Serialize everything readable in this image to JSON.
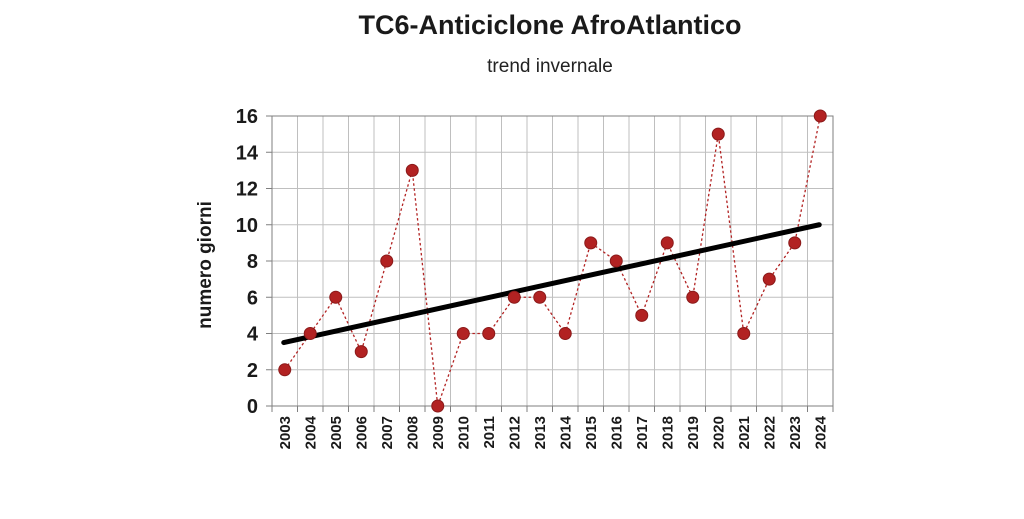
{
  "chart_data": {
    "type": "line",
    "title": "TC6-Anticiclone AfroAtlantico",
    "subtitle": "trend invernale",
    "ylabel": "numero giorni",
    "xlabel": "",
    "ylim": [
      0,
      16
    ],
    "yticks": [
      0,
      2,
      4,
      6,
      8,
      10,
      12,
      14,
      16
    ],
    "grid": true,
    "categories": [
      "2003",
      "2004",
      "2005",
      "2006",
      "2007",
      "2008",
      "2009",
      "2010",
      "2011",
      "2012",
      "2013",
      "2014",
      "2015",
      "2016",
      "2017",
      "2018",
      "2019",
      "2020",
      "2021",
      "2022",
      "2023",
      "2024"
    ],
    "series": [
      {
        "values": [
          2,
          4,
          6,
          3,
          8,
          13,
          0,
          4,
          4,
          6,
          6,
          4,
          9,
          8,
          5,
          9,
          6,
          15,
          4,
          7,
          9,
          16
        ],
        "color": "#b22222",
        "style": "dotted-line-with-markers"
      }
    ],
    "trendline": {
      "start": 3.5,
      "end": 10.0,
      "color": "#000000"
    }
  }
}
